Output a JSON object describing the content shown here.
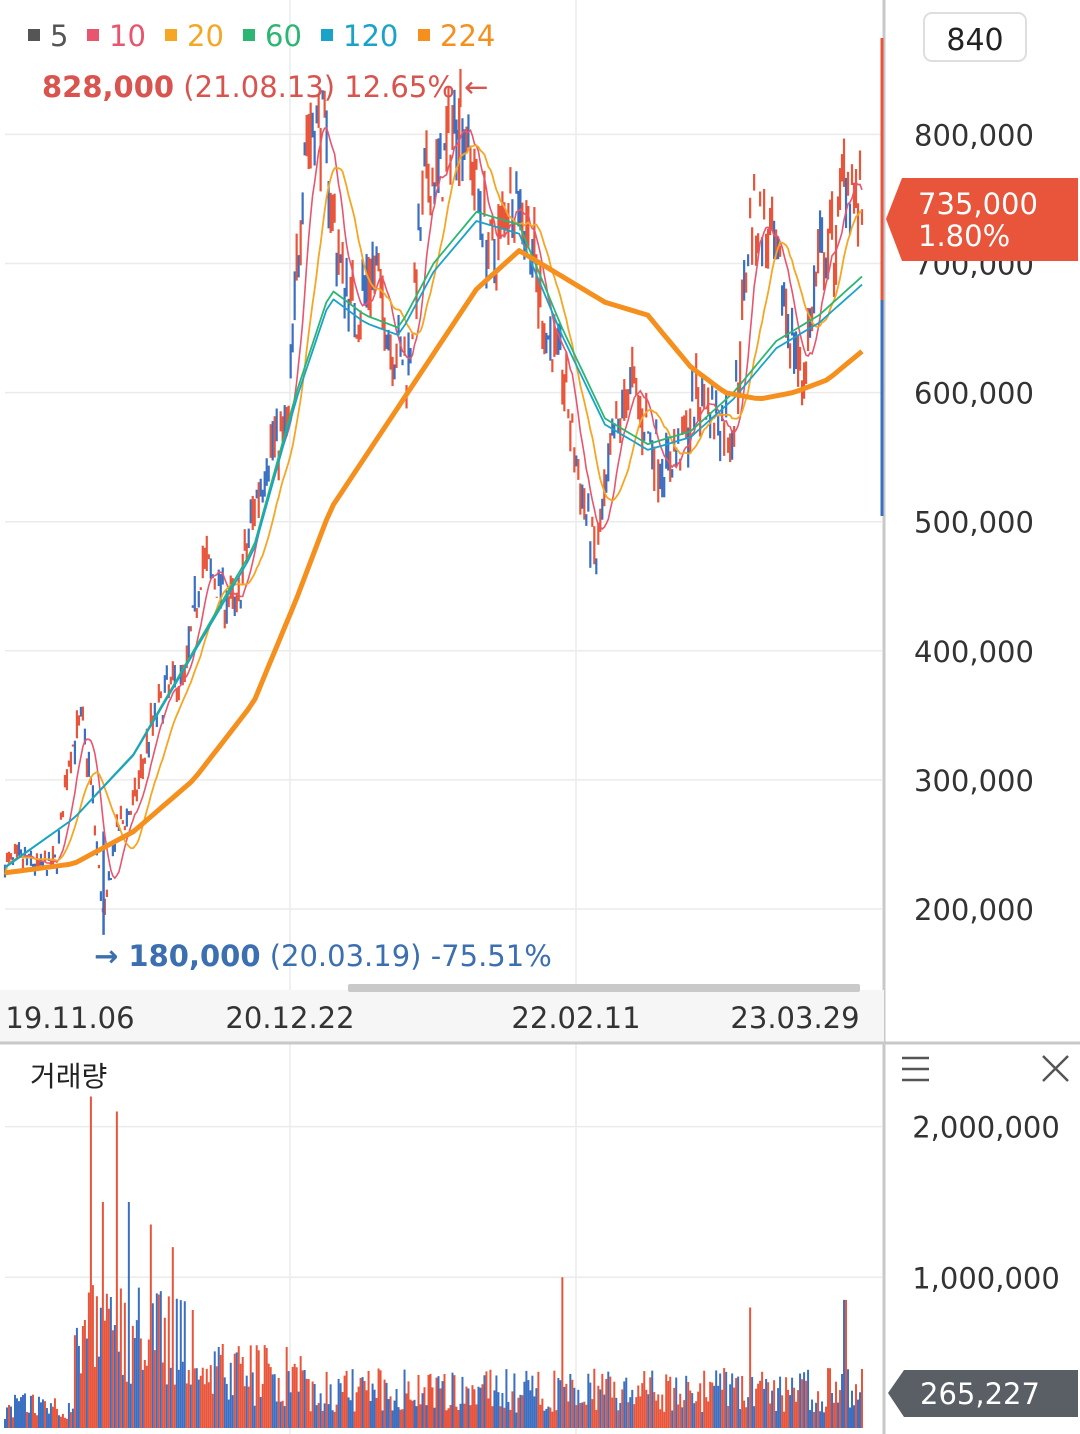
{
  "colors": {
    "ma5": "#555555",
    "ma10": "#e8556d",
    "ma20": "#f5a623",
    "ma60": "#2bb673",
    "ma120": "#1aa3c9",
    "ma224": "#f5901e",
    "up": "#e8553a",
    "down": "#3b6fc2",
    "current_badge": "#e8553a",
    "volume_badge": "#5a5f66",
    "grid": "#ebebeb",
    "axis": "#c8c8c8"
  },
  "legend": [
    {
      "label": "5",
      "color": "#555555"
    },
    {
      "label": "10",
      "color": "#e8556d"
    },
    {
      "label": "20",
      "color": "#f5a623"
    },
    {
      "label": "60",
      "color": "#2bb673"
    },
    {
      "label": "120",
      "color": "#1aa3c9"
    },
    {
      "label": "224",
      "color": "#f5901e"
    }
  ],
  "period_box": "840",
  "high_annotation": {
    "value": "828,000",
    "date": "(21.08.13)",
    "pct": "12.65%",
    "arrow": "←"
  },
  "low_annotation": {
    "arrow": "→",
    "value": "180,000",
    "date": "(20.03.19)",
    "pct": "-75.51%"
  },
  "current_price": {
    "price": "735,000",
    "change": "1.80%"
  },
  "volume_panel": {
    "title": "거래량",
    "current": "265,227",
    "menu_icon": "hamburger-menu-icon",
    "close_icon": "close-icon"
  },
  "chart_data": [
    {
      "type": "line",
      "y_axis_ticks": [
        "800,000",
        "700,000",
        "600,000",
        "500,000",
        "400,000",
        "300,000",
        "200,000"
      ],
      "y_tick_values": [
        800000,
        700000,
        600000,
        500000,
        400000,
        300000,
        200000
      ],
      "ylim": [
        165000,
        860000
      ],
      "x_axis_ticks": [
        "19.11.06",
        "20.12.22",
        "22.02.11",
        "23.03.29"
      ],
      "x_tick_positions_index": [
        0,
        0.292,
        0.642,
        0.912
      ],
      "grid": true,
      "legend_position": "top-left",
      "price_path": [
        [
          0.0,
          235000
        ],
        [
          0.02,
          238000
        ],
        [
          0.04,
          232000
        ],
        [
          0.06,
          236000
        ],
        [
          0.075,
          320000
        ],
        [
          0.09,
          345000
        ],
        [
          0.1,
          300000
        ],
        [
          0.115,
          190000
        ],
        [
          0.13,
          260000
        ],
        [
          0.15,
          280000
        ],
        [
          0.17,
          340000
        ],
        [
          0.19,
          370000
        ],
        [
          0.21,
          380000
        ],
        [
          0.23,
          470000
        ],
        [
          0.25,
          450000
        ],
        [
          0.27,
          430000
        ],
        [
          0.29,
          510000
        ],
        [
          0.31,
          560000
        ],
        [
          0.33,
          570000
        ],
        [
          0.35,
          800000
        ],
        [
          0.37,
          810000
        ],
        [
          0.39,
          700000
        ],
        [
          0.41,
          660000
        ],
        [
          0.43,
          700000
        ],
        [
          0.45,
          640000
        ],
        [
          0.47,
          620000
        ],
        [
          0.49,
          760000
        ],
        [
          0.51,
          770000
        ],
        [
          0.53,
          828000
        ],
        [
          0.55,
          760000
        ],
        [
          0.57,
          700000
        ],
        [
          0.59,
          760000
        ],
        [
          0.61,
          730000
        ],
        [
          0.63,
          650000
        ],
        [
          0.65,
          620000
        ],
        [
          0.67,
          530000
        ],
        [
          0.69,
          470000
        ],
        [
          0.71,
          560000
        ],
        [
          0.73,
          610000
        ],
        [
          0.75,
          570000
        ],
        [
          0.77,
          540000
        ],
        [
          0.79,
          560000
        ],
        [
          0.81,
          600000
        ],
        [
          0.83,
          580000
        ],
        [
          0.85,
          570000
        ],
        [
          0.87,
          740000
        ],
        [
          0.89,
          720000
        ],
        [
          0.91,
          670000
        ],
        [
          0.93,
          610000
        ],
        [
          0.95,
          700000
        ],
        [
          0.97,
          720000
        ],
        [
          0.98,
          780000
        ],
        [
          1.0,
          735000
        ]
      ],
      "ma224_path": [
        [
          0.0,
          228000
        ],
        [
          0.08,
          235000
        ],
        [
          0.15,
          260000
        ],
        [
          0.22,
          300000
        ],
        [
          0.29,
          360000
        ],
        [
          0.34,
          440000
        ],
        [
          0.38,
          510000
        ],
        [
          0.44,
          570000
        ],
        [
          0.5,
          630000
        ],
        [
          0.55,
          680000
        ],
        [
          0.6,
          710000
        ],
        [
          0.65,
          690000
        ],
        [
          0.7,
          670000
        ],
        [
          0.75,
          660000
        ],
        [
          0.8,
          620000
        ],
        [
          0.84,
          600000
        ],
        [
          0.88,
          595000
        ],
        [
          0.92,
          600000
        ],
        [
          0.96,
          610000
        ],
        [
          1.0,
          632000
        ]
      ],
      "ma60_path": [
        [
          0.0,
          232000
        ],
        [
          0.08,
          270000
        ],
        [
          0.15,
          320000
        ],
        [
          0.22,
          400000
        ],
        [
          0.29,
          480000
        ],
        [
          0.34,
          600000
        ],
        [
          0.38,
          680000
        ],
        [
          0.42,
          660000
        ],
        [
          0.46,
          650000
        ],
        [
          0.5,
          700000
        ],
        [
          0.55,
          740000
        ],
        [
          0.6,
          730000
        ],
        [
          0.65,
          650000
        ],
        [
          0.7,
          580000
        ],
        [
          0.75,
          560000
        ],
        [
          0.8,
          570000
        ],
        [
          0.85,
          600000
        ],
        [
          0.9,
          640000
        ],
        [
          0.95,
          660000
        ],
        [
          1.0,
          690000
        ]
      ]
    },
    {
      "type": "bar",
      "title": "거래량",
      "y_axis_ticks": [
        "2,000,000",
        "1,000,000"
      ],
      "y_tick_values": [
        2000000,
        1000000
      ],
      "ylim": [
        0,
        2150000
      ],
      "current_value": 265227
    }
  ]
}
